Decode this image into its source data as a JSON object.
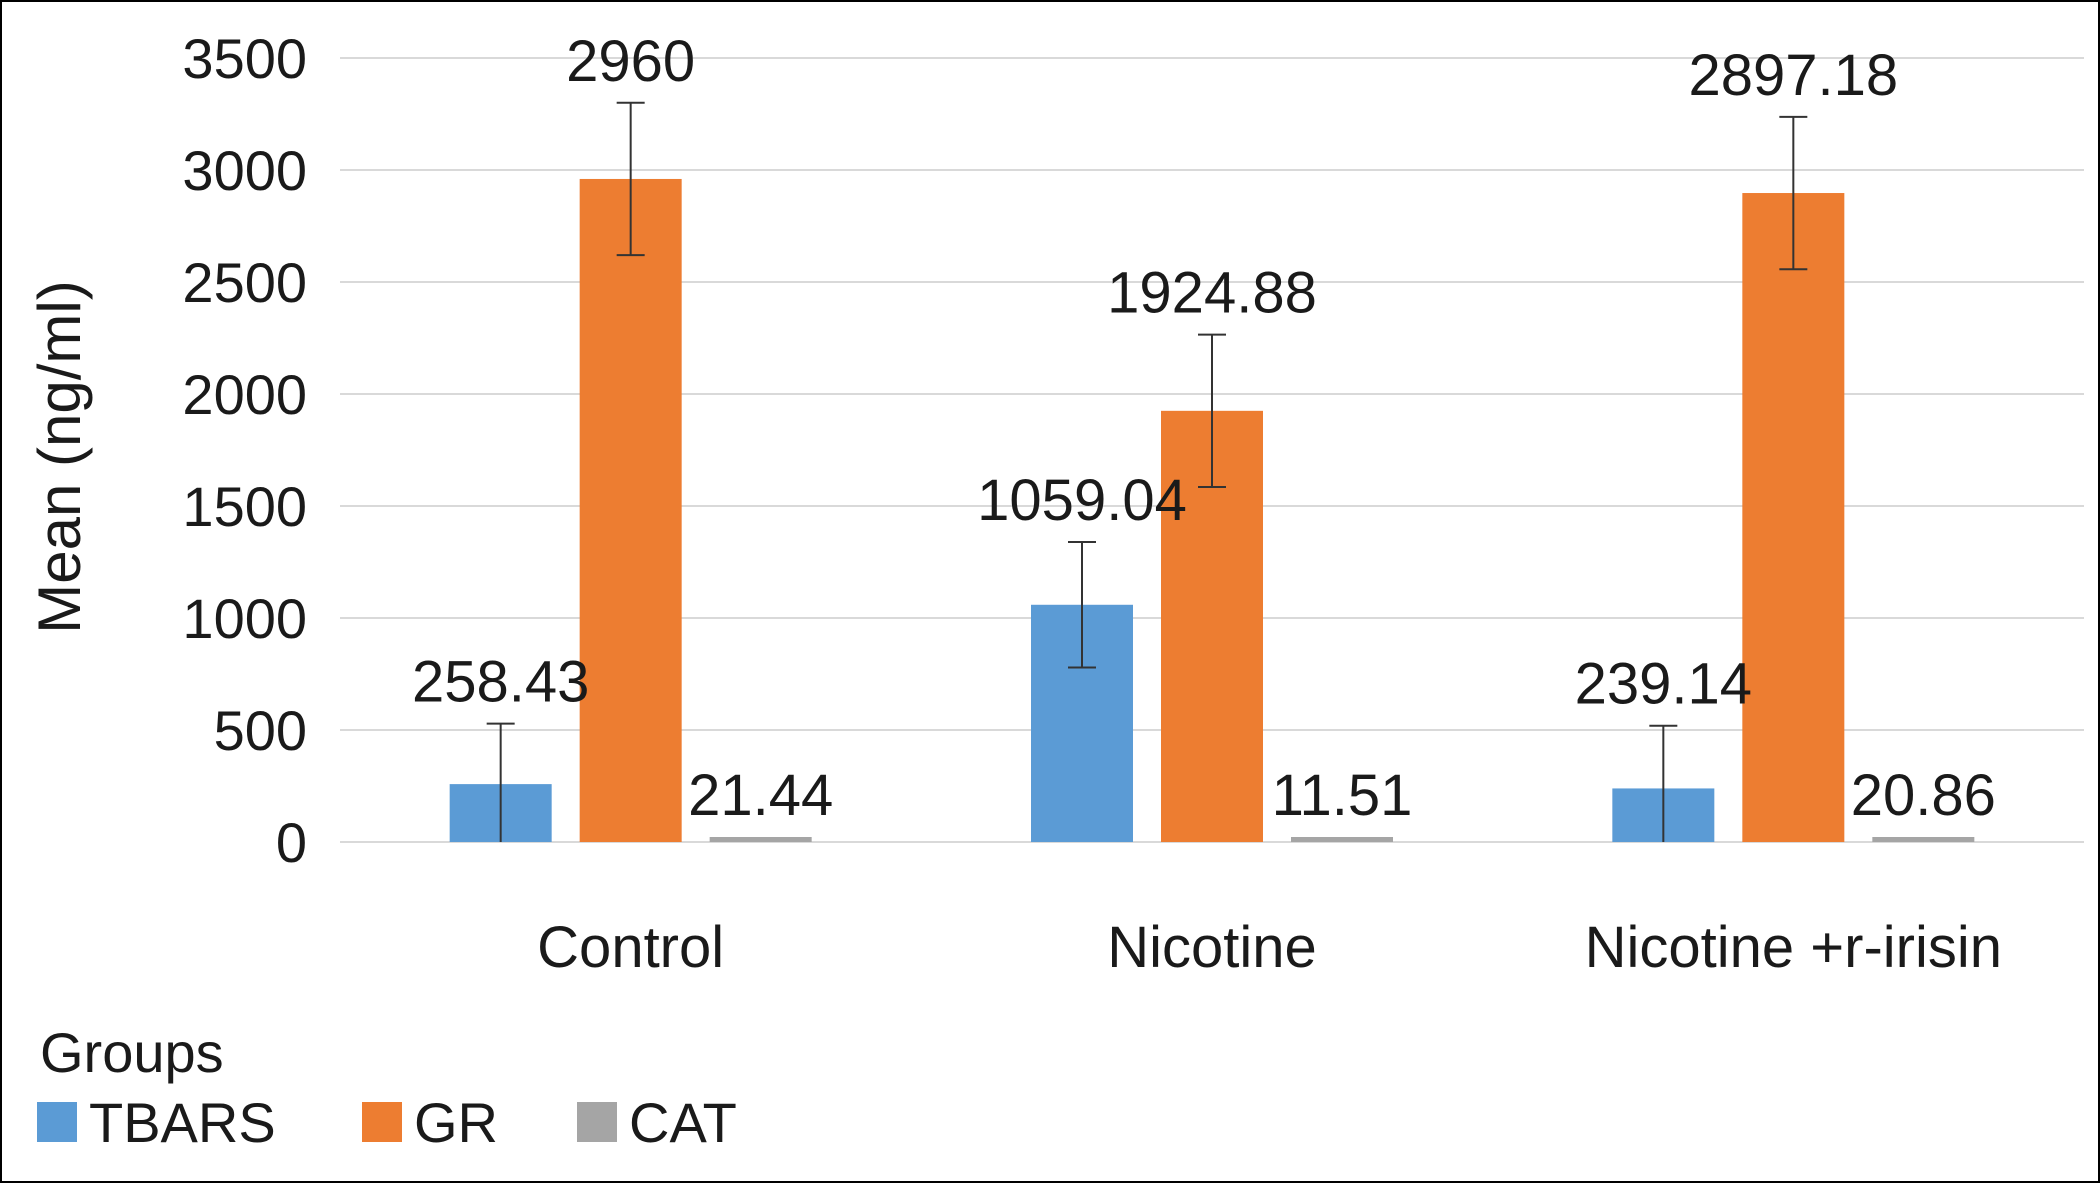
{
  "chart_data": {
    "type": "bar",
    "title": "",
    "xlabel": "",
    "ylabel": "Mean (ng/ml)",
    "ylim": [
      0,
      3500
    ],
    "yticks": [
      0,
      500,
      1000,
      1500,
      2000,
      2500,
      3000,
      3500
    ],
    "categories": [
      "Control",
      "Nicotine",
      "Nicotine +r-irisin"
    ],
    "series": [
      {
        "name": "TBARS",
        "color": "#5b9bd5",
        "values": [
          258.43,
          1059.04,
          239.14
        ],
        "errors": [
          270,
          280,
          280
        ]
      },
      {
        "name": "GR",
        "color": "#ed7d31",
        "values": [
          2960,
          1924.88,
          2897.18
        ],
        "errors": [
          340,
          340,
          340
        ]
      },
      {
        "name": "CAT",
        "color": "#a5a5a5",
        "values": [
          21.44,
          11.51,
          20.86
        ],
        "errors": [
          0,
          0,
          0
        ]
      }
    ],
    "data_labels": [
      [
        "258.43",
        "1059.04",
        "239.14"
      ],
      [
        "2960",
        "1924.88",
        "2897.18"
      ],
      [
        "21.44",
        "11.51",
        "20.86"
      ]
    ],
    "grid": true,
    "legend": {
      "title": "Groups",
      "position": "bottom-left"
    }
  }
}
